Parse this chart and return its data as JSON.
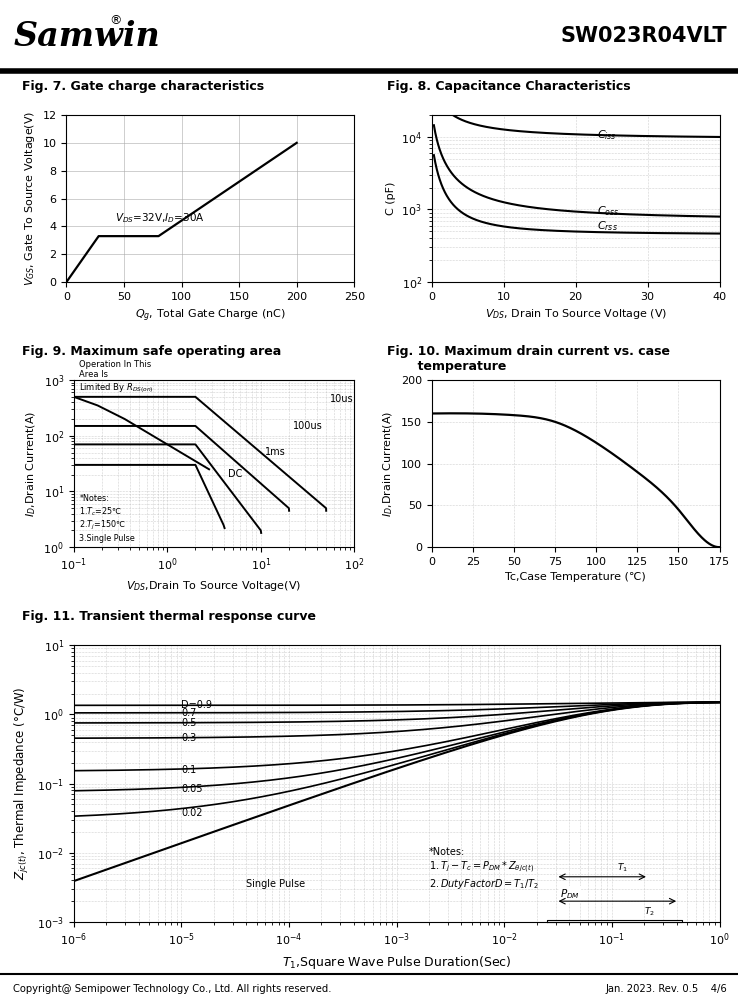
{
  "header_left": "Samwin",
  "header_right": "SW023R04VLT",
  "fig7_title": "Fig. 7. Gate charge characteristics",
  "fig8_title": "Fig. 8. Capacitance Characteristics",
  "fig9_title": "Fig. 9. Maximum safe operating area",
  "fig10_title": "Fig. 10. Maximum drain current vs. case\n       temperature",
  "fig11_title": "Fig. 11. Transient thermal response curve",
  "footer_left": "Copyright@ Semipower Technology Co., Ltd. All rights reserved.",
  "footer_right": "Jan. 2023. Rev. 0.5    4/6",
  "fig7_xlabel": "$Q_g$, Total Gate Charge (nC)",
  "fig7_ylabel": "$V_{GS}$, Gate To Source Voltage(V)",
  "fig7_annotation": "$V_{DS}$=32V,$I_D$=30A",
  "fig8_xlabel": "$V_{DS}$, Drain To Source Voltage (V)",
  "fig8_ylabel": "C (pF)",
  "fig9_xlabel": "$V_{DS}$,Drain To Source Voltage(V)",
  "fig9_ylabel": "$I_D$,Drain Current(A)",
  "fig10_xlabel": "Tc,Case Temperature (℃)",
  "fig10_ylabel": "$I_D$,Drain Current(A)",
  "fig11_xlabel": "$T_1$,Square Wave Pulse Duration(Sec)",
  "fig11_ylabel": "$Z_{jc(t)}$, Thermal Impedance (°C/W)",
  "duty_labels": [
    "D=0.9",
    "0.7",
    "0.5",
    "0.3",
    "0.1",
    "0.05",
    "0.02"
  ],
  "duty_values": [
    0.9,
    0.7,
    0.5,
    0.3,
    0.1,
    0.05,
    0.02
  ],
  "zth_max": 1.5,
  "bg": "#ffffff",
  "lc": "#000000",
  "gc": "#aaaaaa"
}
